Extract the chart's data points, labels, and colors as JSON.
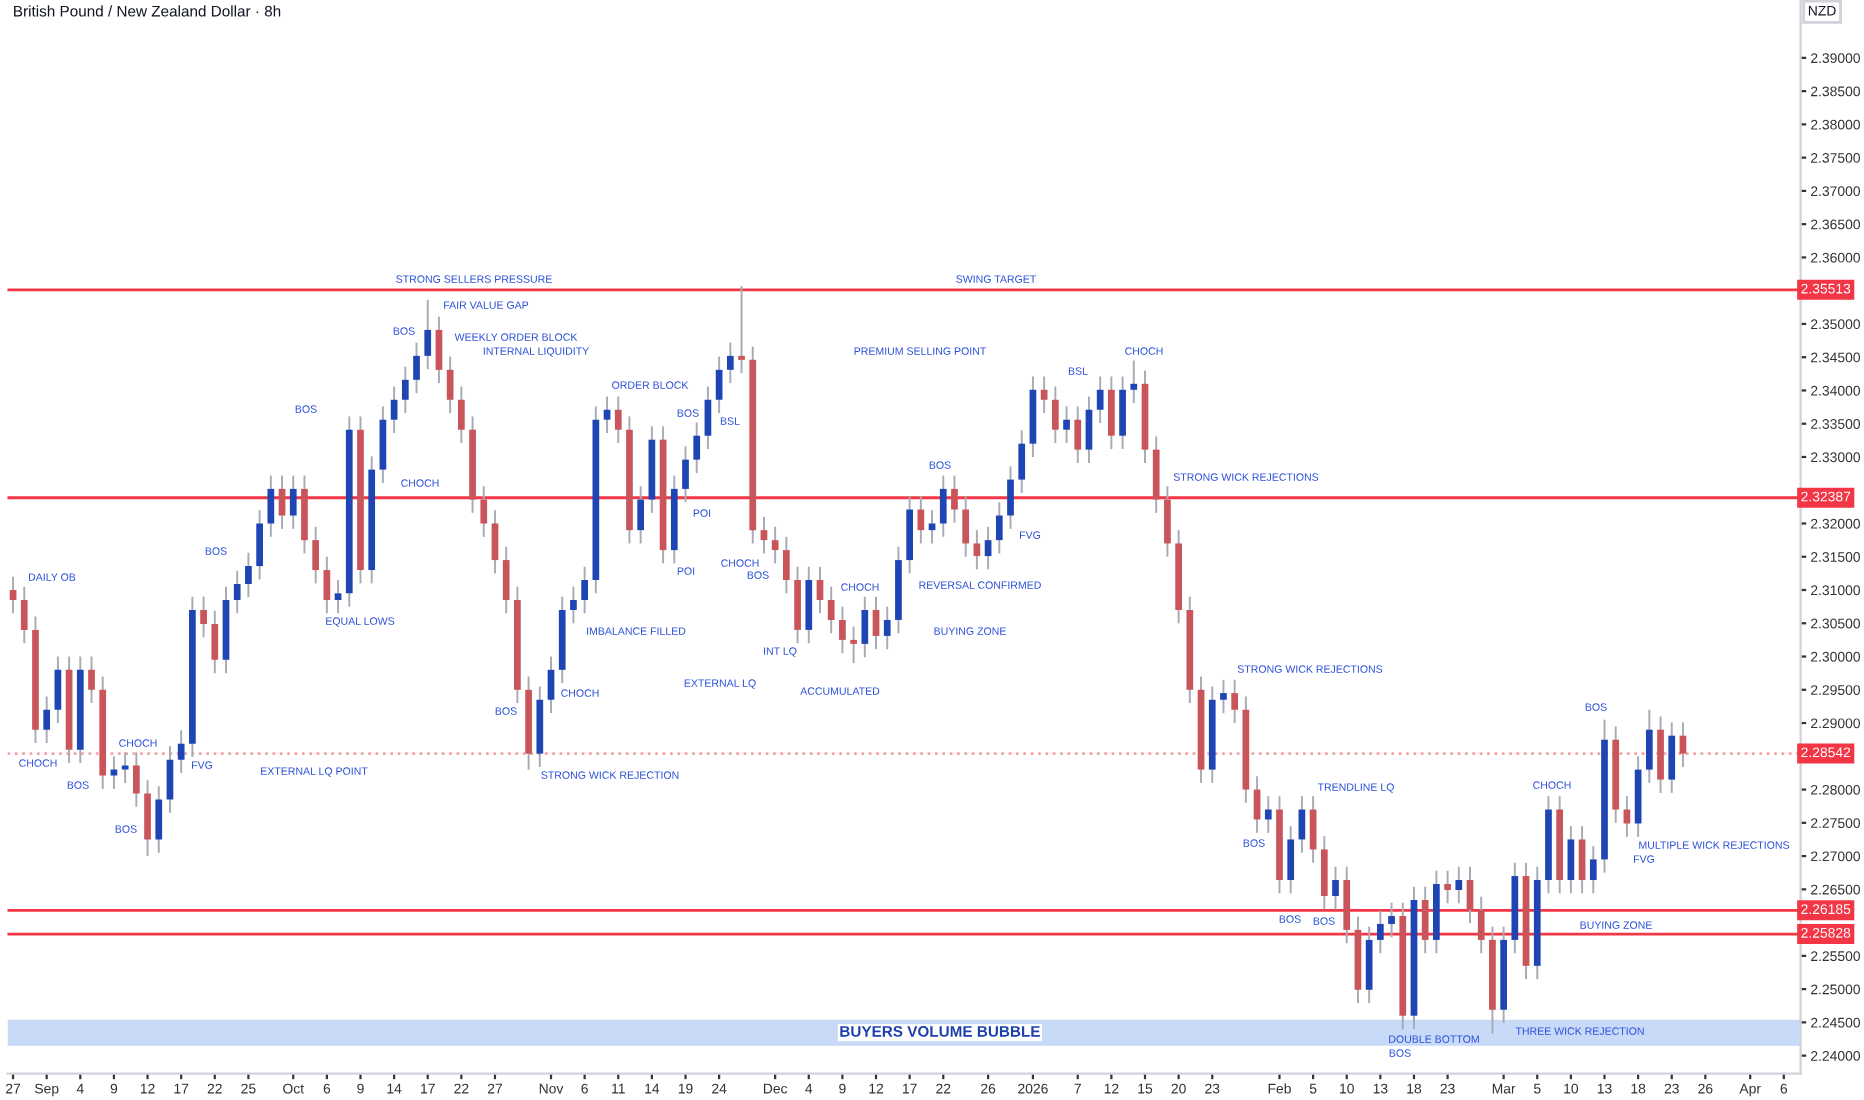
{
  "chart_data": {
    "type": "candlestick",
    "title": "British Pound / New Zealand Dollar · 8h",
    "ylabel": "NZD",
    "categories": [
      "27",
      null,
      null,
      "Sep",
      null,
      null,
      "4",
      null,
      null,
      "9",
      null,
      null,
      "12",
      null,
      null,
      "17",
      null,
      null,
      "22",
      null,
      null,
      "25",
      null,
      null,
      null,
      "Oct",
      null,
      null,
      "6",
      null,
      null,
      "9",
      null,
      null,
      "14",
      null,
      null,
      "17",
      null,
      null,
      "22",
      null,
      null,
      "27",
      null,
      null,
      null,
      null,
      "Nov",
      null,
      null,
      "6",
      null,
      null,
      "11",
      null,
      null,
      "14",
      null,
      null,
      "19",
      null,
      null,
      "24",
      null,
      null,
      null,
      null,
      "Dec",
      null,
      null,
      "4",
      null,
      null,
      "9",
      null,
      null,
      "12",
      null,
      null,
      "17",
      null,
      null,
      "22",
      null,
      null,
      null,
      "26",
      null,
      null,
      null,
      "2026",
      null,
      null,
      null,
      "7",
      null,
      null,
      "12",
      null,
      null,
      "15",
      null,
      null,
      "20",
      null,
      null,
      "23",
      null,
      null,
      null,
      null,
      null,
      "Feb",
      null,
      null,
      "5",
      null,
      null,
      "10",
      null,
      null,
      "13",
      null,
      null,
      "18",
      null,
      null,
      "23",
      null,
      null,
      null,
      null,
      "Mar",
      null,
      null,
      "5",
      null,
      null,
      "10",
      null,
      null,
      "13",
      null,
      null,
      "18",
      null,
      null,
      "23",
      null,
      null,
      "26",
      null,
      null,
      null,
      "Apr",
      null,
      null,
      "6",
      null
    ],
    "ohlc": [
      [
        2.31,
        2.312,
        2.3065,
        2.3085
      ],
      [
        2.3085,
        2.3105,
        2.302,
        2.304
      ],
      [
        2.304,
        2.306,
        2.287,
        2.289
      ],
      [
        2.289,
        2.294,
        2.287,
        2.292
      ],
      [
        2.292,
        2.3,
        2.29,
        2.298
      ],
      [
        2.298,
        2.3,
        2.284,
        2.286
      ],
      [
        2.286,
        2.3,
        2.284,
        2.298
      ],
      [
        2.298,
        2.3,
        2.293,
        2.295
      ],
      [
        2.295,
        2.297,
        2.2801,
        2.2821
      ],
      [
        2.2821,
        2.285,
        2.2801,
        2.283
      ],
      [
        2.283,
        2.2856,
        2.281,
        2.2836
      ],
      [
        2.2836,
        2.2856,
        2.2774,
        2.2794
      ],
      [
        2.2794,
        2.2814,
        2.27,
        2.2725
      ],
      [
        2.2725,
        2.2805,
        2.2705,
        2.2785
      ],
      [
        2.2785,
        2.2865,
        2.2765,
        2.2845
      ],
      [
        2.2845,
        2.2889,
        2.2825,
        2.2869
      ],
      [
        2.2869,
        2.309,
        2.2849,
        2.307
      ],
      [
        2.307,
        2.309,
        2.3029,
        2.3049
      ],
      [
        2.3049,
        2.3069,
        2.2975,
        2.2995
      ],
      [
        2.2995,
        2.3105,
        2.2975,
        2.3085
      ],
      [
        2.3085,
        2.3129,
        2.3065,
        2.3109
      ],
      [
        2.3109,
        2.3156,
        2.3089,
        2.3136
      ],
      [
        2.3136,
        2.322,
        2.3116,
        2.32
      ],
      [
        2.32,
        2.3272,
        2.318,
        2.3252
      ],
      [
        2.3252,
        2.3272,
        2.3192,
        2.3212
      ],
      [
        2.3212,
        2.3272,
        2.3192,
        2.3252
      ],
      [
        2.3252,
        2.3272,
        2.3155,
        2.3175
      ],
      [
        2.3175,
        2.3195,
        2.311,
        2.313
      ],
      [
        2.313,
        2.315,
        2.3065,
        2.3085
      ],
      [
        2.3085,
        2.3115,
        2.3065,
        2.3095
      ],
      [
        2.3095,
        2.3361,
        2.3075,
        2.3341
      ],
      [
        2.3341,
        2.3361,
        2.311,
        2.313
      ],
      [
        2.313,
        2.3301,
        2.311,
        2.3281
      ],
      [
        2.3281,
        2.3376,
        2.3261,
        2.3356
      ],
      [
        2.3356,
        2.3406,
        2.3336,
        2.3386
      ],
      [
        2.3386,
        2.3436,
        2.3366,
        2.3416
      ],
      [
        2.3416,
        2.3472,
        2.3396,
        2.3452
      ],
      [
        2.3452,
        2.3536,
        2.3432,
        2.3491
      ],
      [
        2.3491,
        2.3511,
        2.3411,
        2.3431
      ],
      [
        2.3431,
        2.3451,
        2.3366,
        2.3386
      ],
      [
        2.3386,
        2.3406,
        2.3321,
        2.3341
      ],
      [
        2.3341,
        2.3361,
        2.3216,
        2.3236
      ],
      [
        2.3236,
        2.3256,
        2.318,
        2.32
      ],
      [
        2.32,
        2.322,
        2.3125,
        2.3145
      ],
      [
        2.3145,
        2.3165,
        2.3065,
        2.3085
      ],
      [
        2.3085,
        2.3105,
        2.293,
        2.295
      ],
      [
        2.295,
        2.297,
        2.283,
        2.2854
      ],
      [
        2.2854,
        2.2955,
        2.2834,
        2.2935
      ],
      [
        2.2935,
        2.3,
        2.2915,
        2.298
      ],
      [
        2.298,
        2.309,
        2.296,
        2.307
      ],
      [
        2.307,
        2.3105,
        2.305,
        2.3085
      ],
      [
        2.3085,
        2.3135,
        2.3065,
        2.3115
      ],
      [
        2.3115,
        2.3376,
        2.3095,
        2.3356
      ],
      [
        2.3356,
        2.3391,
        2.3336,
        2.3371
      ],
      [
        2.3371,
        2.3391,
        2.3321,
        2.3341
      ],
      [
        2.3341,
        2.3361,
        2.317,
        2.319
      ],
      [
        2.319,
        2.3256,
        2.317,
        2.3236
      ],
      [
        2.3236,
        2.3346,
        2.3216,
        2.3326
      ],
      [
        2.3326,
        2.3346,
        2.314,
        2.316
      ],
      [
        2.316,
        2.3272,
        2.314,
        2.3252
      ],
      [
        2.3252,
        2.3316,
        2.3232,
        2.3296
      ],
      [
        2.3296,
        2.3352,
        2.3276,
        2.3332
      ],
      [
        2.3332,
        2.3406,
        2.3312,
        2.3386
      ],
      [
        2.3386,
        2.3451,
        2.3366,
        2.3431
      ],
      [
        2.3431,
        2.3472,
        2.3411,
        2.3452
      ],
      [
        2.3452,
        2.3557,
        2.3426,
        2.3446
      ],
      [
        2.3446,
        2.3466,
        2.317,
        2.319
      ],
      [
        2.319,
        2.321,
        2.3155,
        2.3175
      ],
      [
        2.3175,
        2.3195,
        2.314,
        2.316
      ],
      [
        2.316,
        2.318,
        2.3095,
        2.3115
      ],
      [
        2.3115,
        2.3135,
        2.302,
        2.304
      ],
      [
        2.304,
        2.3135,
        2.302,
        2.3115
      ],
      [
        2.3115,
        2.3135,
        2.3065,
        2.3085
      ],
      [
        2.3085,
        2.3105,
        2.3035,
        2.3055
      ],
      [
        2.3055,
        2.3075,
        2.3005,
        2.3025
      ],
      [
        2.3025,
        2.3045,
        2.299,
        2.3019
      ],
      [
        2.3019,
        2.309,
        2.2999,
        2.307
      ],
      [
        2.307,
        2.309,
        2.3011,
        2.3031
      ],
      [
        2.3031,
        2.3075,
        2.3011,
        2.3055
      ],
      [
        2.3055,
        2.3165,
        2.3035,
        2.3145
      ],
      [
        2.3145,
        2.3241,
        2.3125,
        2.3221
      ],
      [
        2.3221,
        2.3241,
        2.317,
        2.319
      ],
      [
        2.319,
        2.322,
        2.317,
        2.32
      ],
      [
        2.32,
        2.3272,
        2.318,
        2.3252
      ],
      [
        2.3252,
        2.3272,
        2.3201,
        2.3221
      ],
      [
        2.3221,
        2.3241,
        2.315,
        2.317
      ],
      [
        2.317,
        2.319,
        2.3131,
        2.3151
      ],
      [
        2.3151,
        2.3195,
        2.3131,
        2.3175
      ],
      [
        2.3175,
        2.3232,
        2.3155,
        2.3212
      ],
      [
        2.3212,
        2.3286,
        2.3192,
        2.3266
      ],
      [
        2.3266,
        2.334,
        2.3246,
        2.332
      ],
      [
        2.332,
        2.3421,
        2.33,
        2.3401
      ],
      [
        2.3401,
        2.3421,
        2.3366,
        2.3386
      ],
      [
        2.3386,
        2.3406,
        2.3321,
        2.3341
      ],
      [
        2.3341,
        2.3376,
        2.3321,
        2.3356
      ],
      [
        2.3356,
        2.3376,
        2.3291,
        2.3311
      ],
      [
        2.3311,
        2.3391,
        2.3291,
        2.3371
      ],
      [
        2.3371,
        2.3421,
        2.3351,
        2.3401
      ],
      [
        2.3401,
        2.3421,
        2.3312,
        2.3332
      ],
      [
        2.3332,
        2.3421,
        2.3312,
        2.3401
      ],
      [
        2.3401,
        2.3445,
        2.3381,
        2.341
      ],
      [
        2.341,
        2.343,
        2.3291,
        2.3311
      ],
      [
        2.3311,
        2.3331,
        2.3216,
        2.3236
      ],
      [
        2.3236,
        2.3256,
        2.315,
        2.317
      ],
      [
        2.317,
        2.319,
        2.305,
        2.307
      ],
      [
        2.307,
        2.309,
        2.293,
        2.295
      ],
      [
        2.295,
        2.297,
        2.281,
        2.283
      ],
      [
        2.283,
        2.2955,
        2.281,
        2.2935
      ],
      [
        2.2935,
        2.2965,
        2.2915,
        2.2945
      ],
      [
        2.2945,
        2.2965,
        2.29,
        2.292
      ],
      [
        2.292,
        2.294,
        2.278,
        2.28
      ],
      [
        2.28,
        2.282,
        2.2735,
        2.2755
      ],
      [
        2.2755,
        2.279,
        2.2735,
        2.277
      ],
      [
        2.277,
        2.279,
        2.2644,
        2.2664
      ],
      [
        2.2664,
        2.2745,
        2.2644,
        2.2725
      ],
      [
        2.2725,
        2.279,
        2.2705,
        2.277
      ],
      [
        2.277,
        2.279,
        2.269,
        2.271
      ],
      [
        2.271,
        2.273,
        2.262,
        2.264
      ],
      [
        2.264,
        2.2684,
        2.262,
        2.2664
      ],
      [
        2.2664,
        2.2684,
        2.2569,
        2.2589
      ],
      [
        2.2589,
        2.2609,
        2.2479,
        2.2499
      ],
      [
        2.2499,
        2.2594,
        2.2479,
        2.2574
      ],
      [
        2.2574,
        2.2618,
        2.2554,
        2.2598
      ],
      [
        2.2598,
        2.263,
        2.2578,
        2.261
      ],
      [
        2.261,
        2.263,
        2.2439,
        2.246
      ],
      [
        2.246,
        2.2654,
        2.244,
        2.2634
      ],
      [
        2.2634,
        2.2654,
        2.2554,
        2.2574
      ],
      [
        2.2574,
        2.2678,
        2.2554,
        2.2658
      ],
      [
        2.2658,
        2.2678,
        2.2629,
        2.2649
      ],
      [
        2.2649,
        2.2684,
        2.2629,
        2.2664
      ],
      [
        2.2664,
        2.2684,
        2.2599,
        2.2619
      ],
      [
        2.2619,
        2.2639,
        2.2554,
        2.2574
      ],
      [
        2.2574,
        2.2594,
        2.2433,
        2.2469
      ],
      [
        2.2469,
        2.2594,
        2.2449,
        2.2574
      ],
      [
        2.2574,
        2.269,
        2.2554,
        2.267
      ],
      [
        2.267,
        2.269,
        2.2515,
        2.2535
      ],
      [
        2.2535,
        2.2684,
        2.2515,
        2.2664
      ],
      [
        2.2664,
        2.279,
        2.2644,
        2.277
      ],
      [
        2.277,
        2.279,
        2.2644,
        2.2664
      ],
      [
        2.2664,
        2.2745,
        2.2644,
        2.2725
      ],
      [
        2.2725,
        2.2745,
        2.2644,
        2.2664
      ],
      [
        2.2664,
        2.2715,
        2.2644,
        2.2695
      ],
      [
        2.2695,
        2.2905,
        2.2675,
        2.2875
      ],
      [
        2.2875,
        2.2895,
        2.275,
        2.277
      ],
      [
        2.277,
        2.279,
        2.2729,
        2.2749
      ],
      [
        2.2749,
        2.285,
        2.2729,
        2.283
      ],
      [
        2.283,
        2.292,
        2.281,
        2.289
      ],
      [
        2.289,
        2.291,
        2.2795,
        2.2815
      ],
      [
        2.2815,
        2.2901,
        2.2795,
        2.2881
      ],
      [
        2.2881,
        2.2901,
        2.2834,
        2.2854
      ],
      null,
      null,
      null,
      null,
      null,
      null,
      null,
      null,
      null,
      null
    ],
    "ylim": [
      2.2373,
      2.3987
    ],
    "yticks": [
      {
        "value": 2.24,
        "label": "2.24000"
      },
      {
        "value": 2.245,
        "label": "2.24500"
      },
      {
        "value": 2.25,
        "label": "2.25000"
      },
      {
        "value": 2.255,
        "label": "2.25500"
      },
      {
        "value": 2.265,
        "label": "2.26500"
      },
      {
        "value": 2.27,
        "label": "2.27000"
      },
      {
        "value": 2.275,
        "label": "2.27500"
      },
      {
        "value": 2.28,
        "label": "2.28000"
      },
      {
        "value": 2.29,
        "label": "2.29000"
      },
      {
        "value": 2.295,
        "label": "2.29500"
      },
      {
        "value": 2.3,
        "label": "2.30000"
      },
      {
        "value": 2.305,
        "label": "2.30500"
      },
      {
        "value": 2.31,
        "label": "2.31000"
      },
      {
        "value": 2.315,
        "label": "2.31500"
      },
      {
        "value": 2.32,
        "label": "2.32000"
      },
      {
        "value": 2.33,
        "label": "2.33000"
      },
      {
        "value": 2.335,
        "label": "2.33500"
      },
      {
        "value": 2.34,
        "label": "2.34000"
      },
      {
        "value": 2.345,
        "label": "2.34500"
      },
      {
        "value": 2.35,
        "label": "2.35000"
      },
      {
        "value": 2.36,
        "label": "2.36000"
      },
      {
        "value": 2.365,
        "label": "2.36500"
      },
      {
        "value": 2.37,
        "label": "2.37000"
      },
      {
        "value": 2.375,
        "label": "2.37500"
      },
      {
        "value": 2.38,
        "label": "2.38000"
      },
      {
        "value": 2.385,
        "label": "2.38500"
      },
      {
        "value": 2.39,
        "label": "2.39000"
      }
    ],
    "ref_lines": [
      {
        "axis": "y",
        "value": 2.35513,
        "label": "2.35513",
        "color": "#f23645"
      },
      {
        "axis": "y",
        "value": 2.32387,
        "label": "2.32387",
        "color": "#f23645"
      },
      {
        "axis": "y",
        "value": 2.28542,
        "label": "2.28542",
        "color": "#f7a1a8",
        "line_style": "dotted"
      },
      {
        "axis": "y",
        "value": 2.26185,
        "label": "2.26185",
        "color": "#f23645"
      },
      {
        "axis": "y",
        "value": 2.25828,
        "label": "2.25828",
        "color": "#f23645"
      }
    ],
    "bands": [
      {
        "axis": "y",
        "from": 2.2415,
        "to": 2.2454,
        "label": "BUYERS VOLUME BUBBLE",
        "color": "#c9d9f8"
      }
    ],
    "annotations": [
      "STRONG SELLERS PRESSURE",
      "INTERNAL LIQUIDITY",
      "FAIR VALUE GAP",
      "WEEKLY ORDER BLOCK",
      "DAILY OB",
      "FVG",
      "EQUAL LOWS",
      "EXTERNAL LQ POINT",
      "ORDER BLOCK",
      "IMBALANCE FILLED",
      "STRONG WICK REJECTION",
      "EXTERNAL LQ",
      "ACCUMULATED",
      "PREMIUM SELLING POINT",
      "SWING TARGET",
      "INT LQ",
      "REVERSAL CONFIRMED",
      "BUYING ZONE",
      "FVG",
      "STRONG WICK REJECTIONS",
      "STRONG WICK REJECTIONS",
      "TRENDLINE LQ",
      "DOUBLE BOTTOM",
      "THREE WICK REJECTION",
      "BUYING ZONE",
      "FVG",
      "MULTIPLE WICK REJECTIONS",
      "CHOCH",
      "CHOCH",
      "CHOCH",
      "CHOCH",
      "CHOCH",
      "CHOCH",
      "CHOCH",
      "CHOCH",
      "BOS",
      "BOS",
      "BOS",
      "BOS",
      "BOS",
      "BOS",
      "BOS",
      "BOS",
      "BOS",
      "BOS",
      "BOS",
      "BOS",
      "BOS",
      "BOS",
      "BSL",
      "BSL",
      "POI",
      "POI"
    ]
  }
}
